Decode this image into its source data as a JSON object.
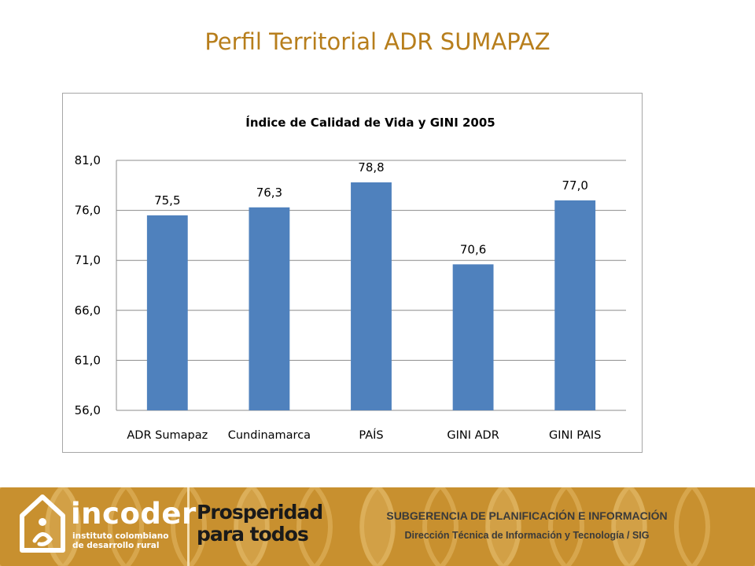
{
  "slide": {
    "title": "Perfil Territorial ADR SUMAPAZ"
  },
  "chart_data": {
    "type": "bar",
    "title": "Índice de Calidad de Vida y GINI  2005",
    "categories": [
      "ADR Sumapaz",
      "Cundinamarca",
      "PAÍS",
      "GINI ADR",
      "GINI PAIS"
    ],
    "values": [
      75.5,
      76.3,
      78.8,
      70.6,
      77.0
    ],
    "value_labels": [
      "75,5",
      "76,3",
      "78,8",
      "70,6",
      "77,0"
    ],
    "y_ticks": [
      "56,0",
      "61,0",
      "66,0",
      "71,0",
      "76,0",
      "81,0"
    ],
    "ylim": [
      56,
      81
    ],
    "grid": true,
    "legend": "none",
    "bar_color": "#4f81bd"
  },
  "footer": {
    "logo_name": "incoder",
    "logo_subtitle_1": "instituto colombiano",
    "logo_subtitle_2": "de desarrollo rural",
    "campaign_line_1": "Prosperidad",
    "campaign_line_2": "para todos",
    "subtitle_1": "SUBGERENCIA DE PLANIFICACIÓN E INFORMACIÓN",
    "subtitle_2": "Dirección Técnica de Información y Tecnología / SIG",
    "bg_color": "#c8902f"
  }
}
